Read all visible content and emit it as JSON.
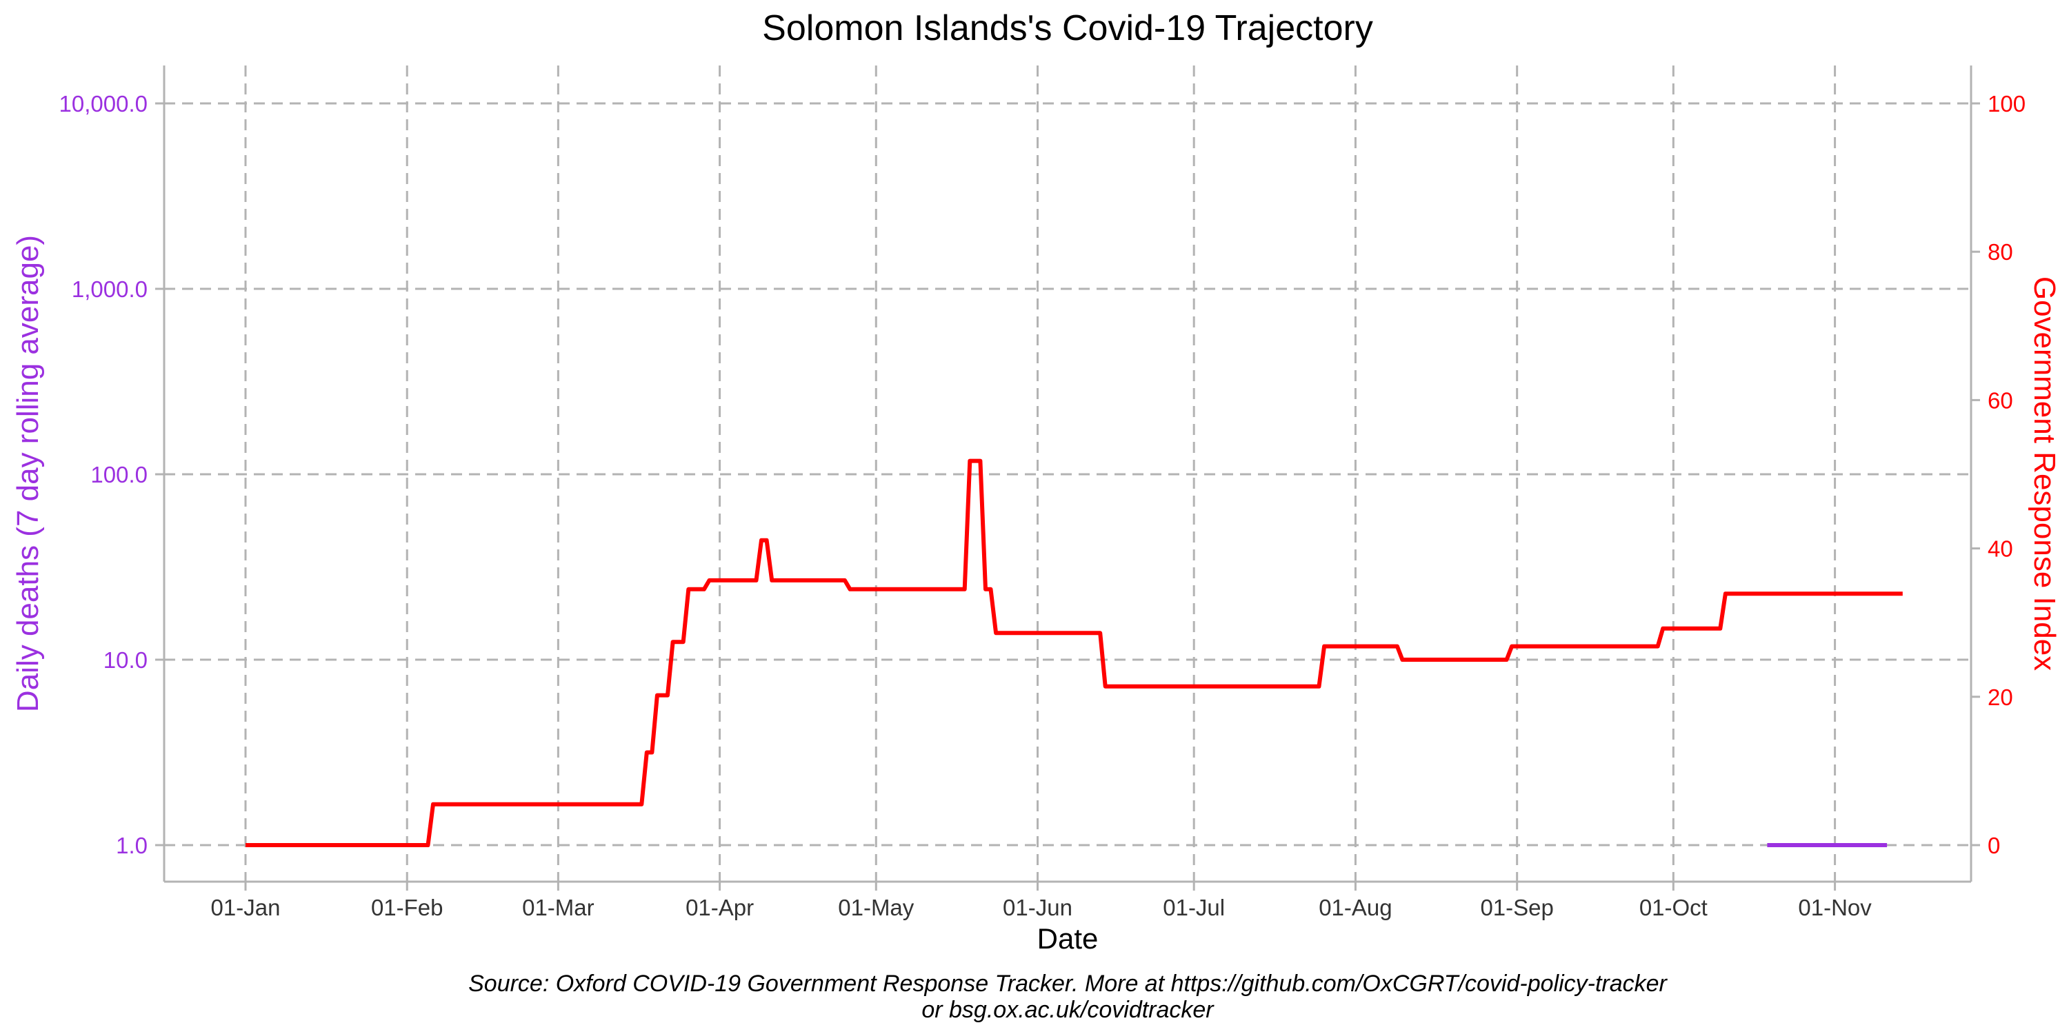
{
  "chart_data": {
    "type": "line",
    "title": "Solomon Islands's Covid-19 Trajectory",
    "xlabel": "Date",
    "ylabel_left": "Daily deaths (7 day rolling average)",
    "ylabel_right": "Government Response Index",
    "y_left_scale": "log",
    "ylim_left": [
      1,
      10000
    ],
    "ylim_right": [
      0,
      100
    ],
    "x_ticks": [
      "01-Jan",
      "01-Feb",
      "01-Mar",
      "01-Apr",
      "01-May",
      "01-Jun",
      "01-Jul",
      "01-Aug",
      "01-Sep",
      "01-Oct",
      "01-Nov"
    ],
    "y_left_ticks": [
      "1.0",
      "10.0",
      "100.0",
      "1,000.0",
      "10,000.0"
    ],
    "y_right_ticks": [
      "0",
      "20",
      "40",
      "60",
      "80",
      "100"
    ],
    "grid": true,
    "colors": {
      "deaths": "#9B30E0",
      "index": "#FF0000",
      "grid": "#b3b3b3"
    },
    "series": [
      {
        "axis": "right",
        "color": "#FF0000",
        "points": [
          [
            "2020-01-01",
            0
          ],
          [
            "2020-02-05",
            0
          ],
          [
            "2020-02-06",
            5.5
          ],
          [
            "2020-03-17",
            5.5
          ],
          [
            "2020-03-18",
            12.5
          ],
          [
            "2020-03-19",
            12.5
          ],
          [
            "2020-03-20",
            20.2
          ],
          [
            "2020-03-22",
            20.2
          ],
          [
            "2020-03-23",
            27.4
          ],
          [
            "2020-03-25",
            27.4
          ],
          [
            "2020-03-26",
            34.5
          ],
          [
            "2020-03-29",
            34.5
          ],
          [
            "2020-03-30",
            35.7
          ],
          [
            "2020-04-08",
            35.7
          ],
          [
            "2020-04-09",
            41.1
          ],
          [
            "2020-04-10",
            41.1
          ],
          [
            "2020-04-11",
            35.7
          ],
          [
            "2020-04-25",
            35.7
          ],
          [
            "2020-04-26",
            34.5
          ],
          [
            "2020-05-18",
            34.5
          ],
          [
            "2020-05-19",
            51.8
          ],
          [
            "2020-05-21",
            51.8
          ],
          [
            "2020-05-22",
            34.5
          ],
          [
            "2020-05-23",
            34.5
          ],
          [
            "2020-05-24",
            28.6
          ],
          [
            "2020-06-13",
            28.6
          ],
          [
            "2020-06-14",
            21.4
          ],
          [
            "2020-07-25",
            21.4
          ],
          [
            "2020-07-26",
            26.8
          ],
          [
            "2020-08-09",
            26.8
          ],
          [
            "2020-08-10",
            25.0
          ],
          [
            "2020-08-30",
            25.0
          ],
          [
            "2020-08-31",
            26.8
          ],
          [
            "2020-09-28",
            26.8
          ],
          [
            "2020-09-29",
            29.2
          ],
          [
            "2020-10-10",
            29.2
          ],
          [
            "2020-10-11",
            33.9
          ],
          [
            "2020-11-14",
            33.9
          ]
        ]
      },
      {
        "axis": "left",
        "color": "#9B30E0",
        "points": [
          [
            "2020-10-19",
            1.0
          ],
          [
            "2020-11-11",
            1.0
          ]
        ]
      }
    ]
  },
  "caption": {
    "line1": "Source: Oxford COVID-19 Government Response Tracker. More at https://github.com/OxCGRT/covid-policy-tracker",
    "line2": "or bsg.ox.ac.uk/covidtracker"
  }
}
